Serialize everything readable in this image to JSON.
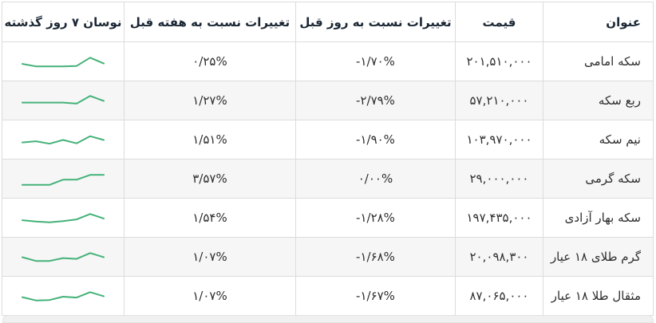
{
  "table": {
    "headers": {
      "title": "عنوان",
      "price": "قیمت",
      "day_change": "تغییرات نسبت به روز قبل",
      "week_change": "تغییرات نسبت به هفته قبل",
      "spark": "نوسان ۷ روز گذشته"
    },
    "rows": [
      {
        "title": "سکه امامی",
        "price": "۲۰۱,۵۱۰,۰۰۰",
        "day_change": "-۱/۷۰%",
        "week_change": "۰/۲۵%",
        "spark": [
          38,
          26,
          26,
          26,
          28,
          68,
          40
        ]
      },
      {
        "title": "ربع سکه",
        "price": "۵۷,۲۱۰,۰۰۰",
        "day_change": "-۲/۷۹%",
        "week_change": "۱/۲۷%",
        "spark": [
          40,
          40,
          40,
          40,
          35,
          72,
          48
        ]
      },
      {
        "title": "نیم سکه",
        "price": "۱۰۳,۹۷۰,۰۰۰",
        "day_change": "-۱/۹۰%",
        "week_change": "۱/۵۱%",
        "spark": [
          36,
          42,
          30,
          48,
          32,
          66,
          48
        ]
      },
      {
        "title": "سکه گرمی",
        "price": "۲۹,۰۰۰,۰۰۰",
        "day_change": "۰/۰۰%",
        "week_change": "۳/۵۷%",
        "spark": [
          20,
          20,
          20,
          45,
          45,
          68,
          68
        ]
      },
      {
        "title": "سکه بهار آزادی",
        "price": "۱۹۷,۴۳۵,۰۰۰",
        "day_change": "-۱/۲۸%",
        "week_change": "۱/۵۴%",
        "spark": [
          38,
          32,
          28,
          34,
          42,
          68,
          46
        ]
      },
      {
        "title": "گرم طلای ۱۸ عیار",
        "price": "۲۰,۰۹۸,۳۰۰",
        "day_change": "-۱/۶۸%",
        "week_change": "۱/۰۷%",
        "spark": [
          48,
          30,
          30,
          44,
          40,
          68,
          48
        ]
      },
      {
        "title": "مثقال طلا ۱۸ عیار",
        "price": "۸۷,۰۶۵,۰۰۰",
        "day_change": "-۱/۶۷%",
        "week_change": "۱/۰۷%",
        "spark": [
          44,
          28,
          30,
          46,
          42,
          68,
          48
        ]
      }
    ]
  },
  "colors": {
    "spark_line": "#44b278",
    "header_text": "#1b2734",
    "body_text": "#2e2e2e",
    "border": "#dcdcdc",
    "alt_row_bg": "#f6f6f7"
  }
}
